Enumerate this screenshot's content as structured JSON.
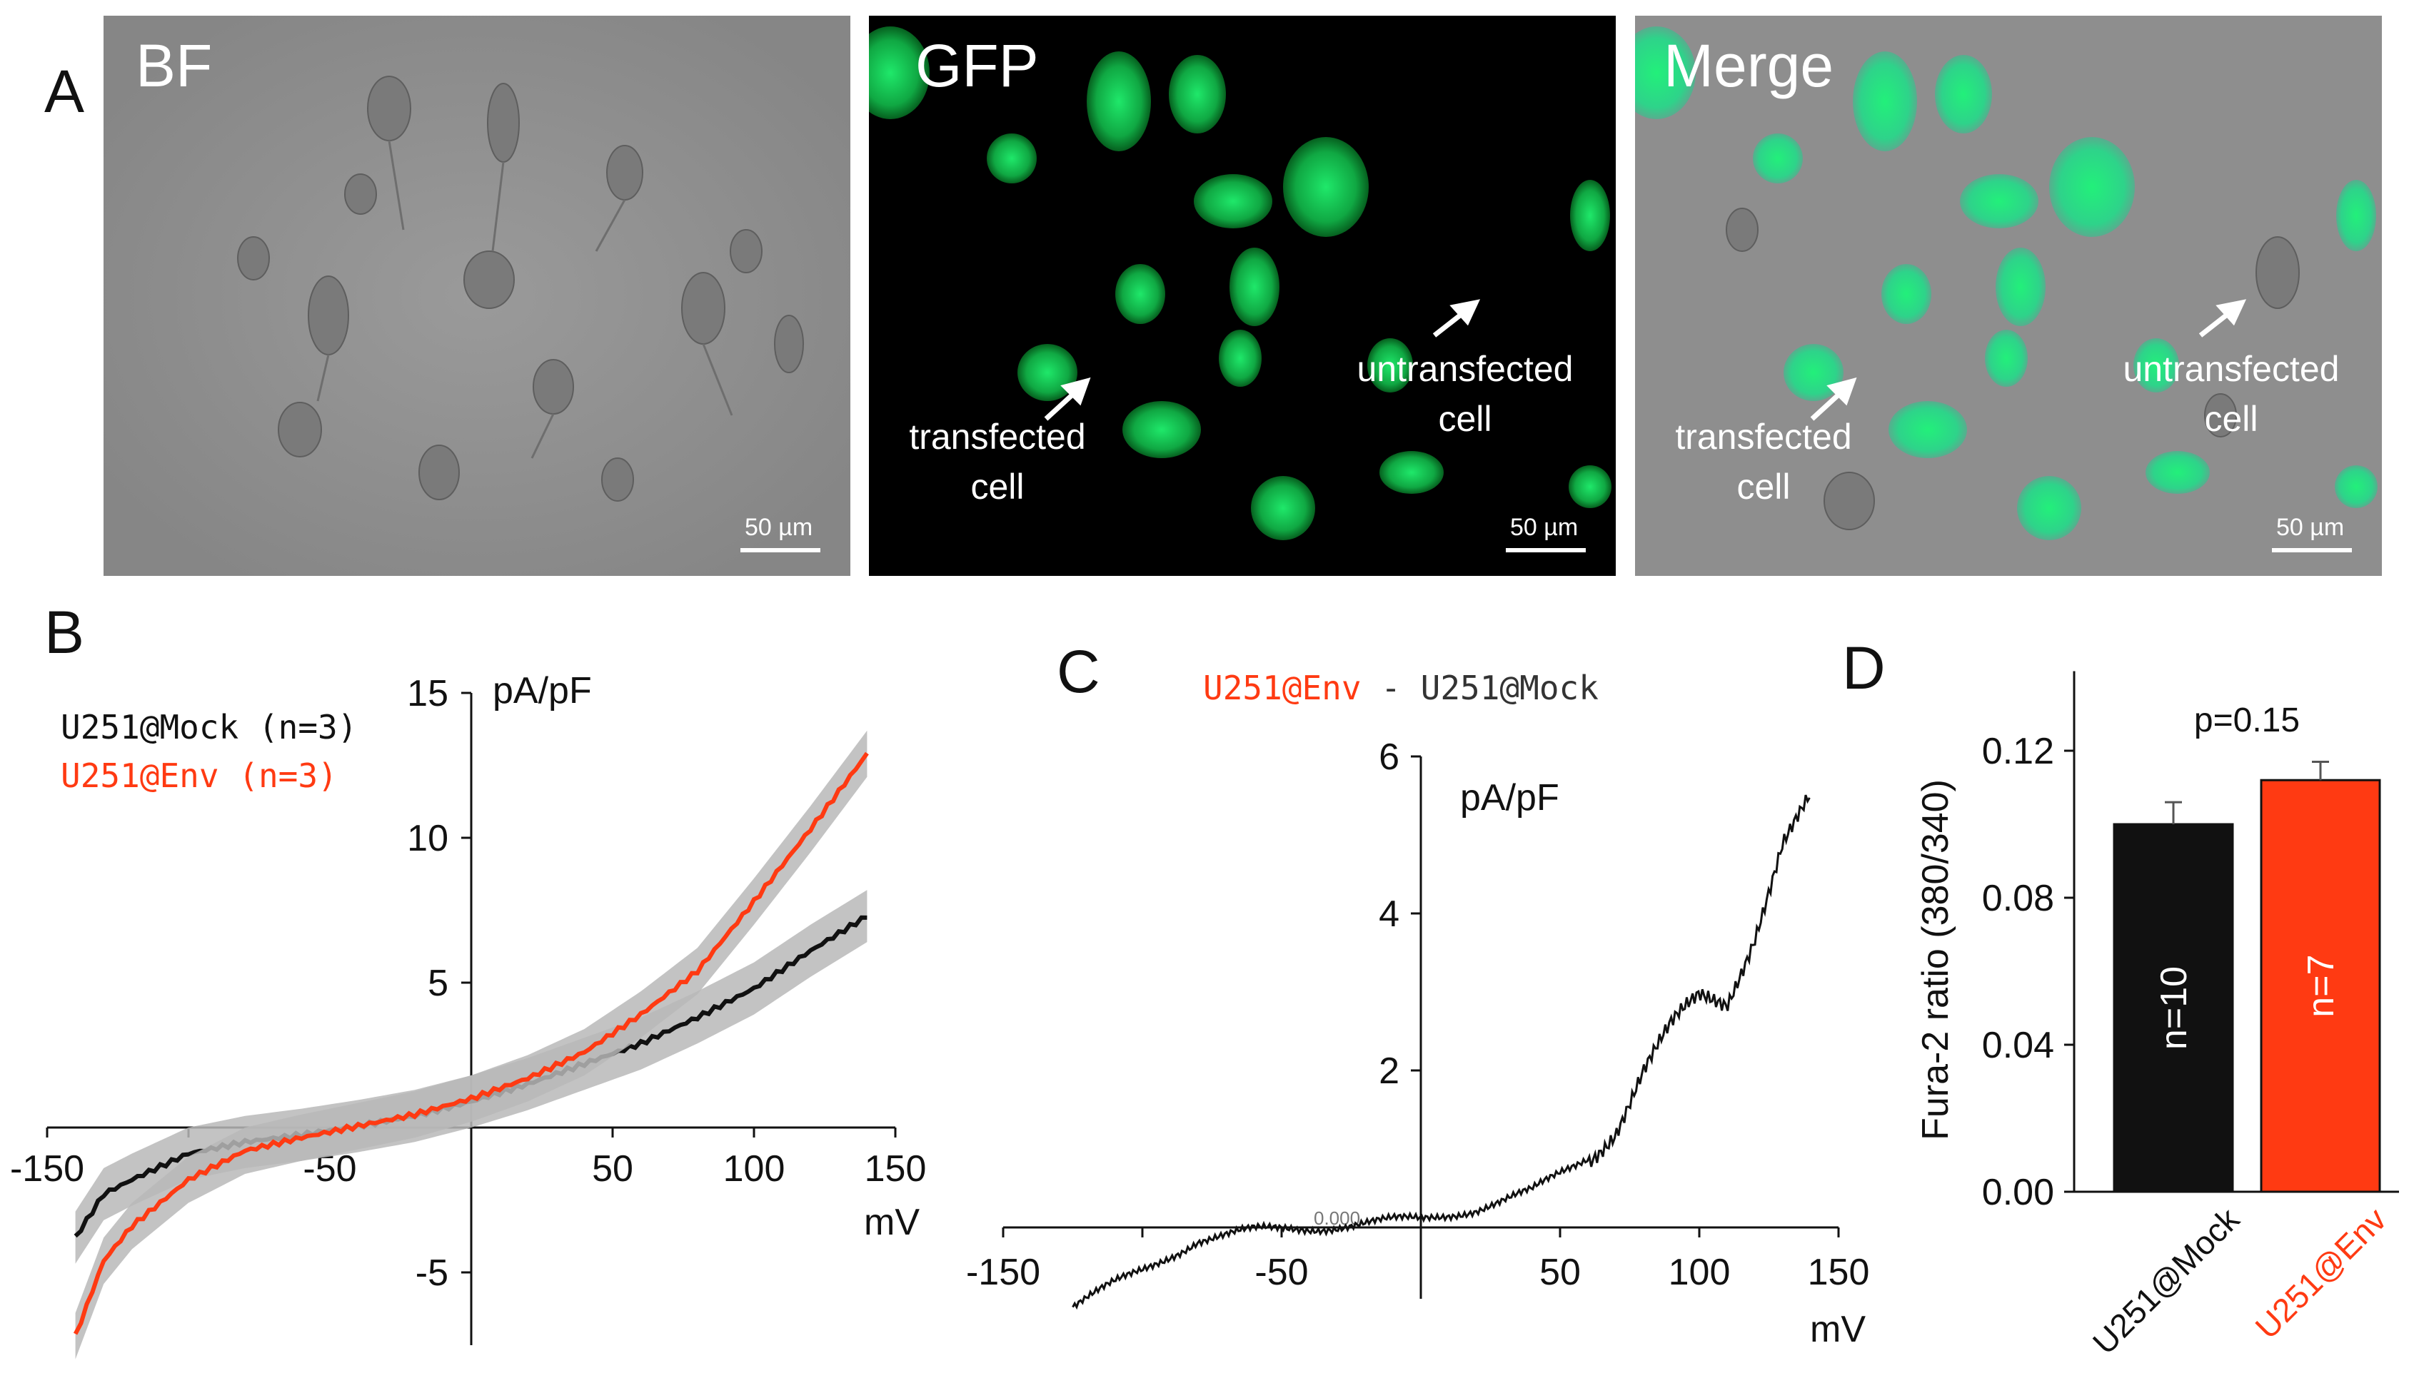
{
  "panelA": {
    "letter": "A",
    "images": [
      {
        "title": "BF",
        "scale": "50 µm"
      },
      {
        "title": "GFP",
        "scale": "50 µm",
        "transfected": [
          "transfected",
          "cell"
        ],
        "untransfected": [
          "untransfected",
          "cell"
        ]
      },
      {
        "title": "Merge",
        "scale": "50 µm",
        "transfected": [
          "transfected",
          "cell"
        ],
        "untransfected": [
          "untransfected",
          "cell"
        ]
      }
    ]
  },
  "chart_data": [
    {
      "panel": "B",
      "type": "line",
      "ylabel": "pA/pF",
      "xlabel": "mV",
      "xlim": [
        -150,
        150
      ],
      "ylim": [
        -7.5,
        15
      ],
      "xticks": [
        "-150",
        "-50",
        "50",
        "100",
        "150"
      ],
      "yticks": [
        "-5",
        "5",
        "10",
        "15"
      ],
      "series": [
        {
          "name": "U251@Mock (n=3)",
          "color": "#111111",
          "x": [
            -140,
            -130,
            -120,
            -100,
            -80,
            -60,
            -40,
            -20,
            0,
            20,
            40,
            60,
            80,
            100,
            120,
            140
          ],
          "y": [
            -3.8,
            -2.3,
            -1.8,
            -0.9,
            -0.5,
            -0.25,
            0.05,
            0.4,
            0.9,
            1.5,
            2.2,
            2.9,
            3.8,
            4.8,
            6.1,
            7.3
          ],
          "error": 0.9
        },
        {
          "name": "U251@Env (n=3)",
          "color": "#ff3a12",
          "x": [
            -140,
            -130,
            -120,
            -100,
            -80,
            -60,
            -40,
            -20,
            0,
            20,
            40,
            60,
            80,
            100,
            120,
            140
          ],
          "y": [
            -7.2,
            -4.6,
            -3.4,
            -1.8,
            -0.8,
            -0.35,
            0.05,
            0.45,
            1.0,
            1.7,
            2.6,
            3.9,
            5.4,
            7.8,
            10.3,
            12.9
          ],
          "error": 0.8
        }
      ]
    },
    {
      "panel": "C",
      "type": "line",
      "title": [
        "U251@Env",
        " - ",
        "U251@Mock"
      ],
      "title_colors": [
        "#ff3a12",
        "#333333",
        "#333333"
      ],
      "ylabel": "pA/pF",
      "xlabel": "mV",
      "xlim": [
        -150,
        150
      ],
      "ylim": [
        -1,
        6
      ],
      "xticks": [
        "-150",
        "-50",
        "50",
        "100",
        "150"
      ],
      "yticks": [
        "2",
        "4",
        "6"
      ],
      "origin_label": "0.000",
      "series": [
        {
          "name": "difference",
          "color": "#111111",
          "x": [
            -125,
            -100,
            -80,
            -60,
            -40,
            -20,
            0,
            20,
            40,
            60,
            70,
            80,
            90,
            100,
            110,
            120,
            130,
            140
          ],
          "y": [
            -1.0,
            -0.55,
            -0.15,
            -0.05,
            0.0,
            0.05,
            0.1,
            0.25,
            0.45,
            0.9,
            1.3,
            2.0,
            2.5,
            2.9,
            2.9,
            3.8,
            4.9,
            5.4
          ]
        }
      ]
    },
    {
      "panel": "D",
      "type": "bar",
      "ylabel": "Fura-2 ratio (380/340)",
      "ylim": [
        0,
        0.13
      ],
      "yticks": [
        "0.00",
        "0.04",
        "0.08",
        "0.12"
      ],
      "categories": [
        "U251@Mock",
        "U251@Env"
      ],
      "category_colors": [
        "#111111",
        "#ff3a12"
      ],
      "values": [
        0.1,
        0.112
      ],
      "errors": [
        0.006,
        0.005
      ],
      "bar_labels": [
        "n=10",
        "n=7"
      ],
      "annotation": "p=0.15"
    }
  ]
}
